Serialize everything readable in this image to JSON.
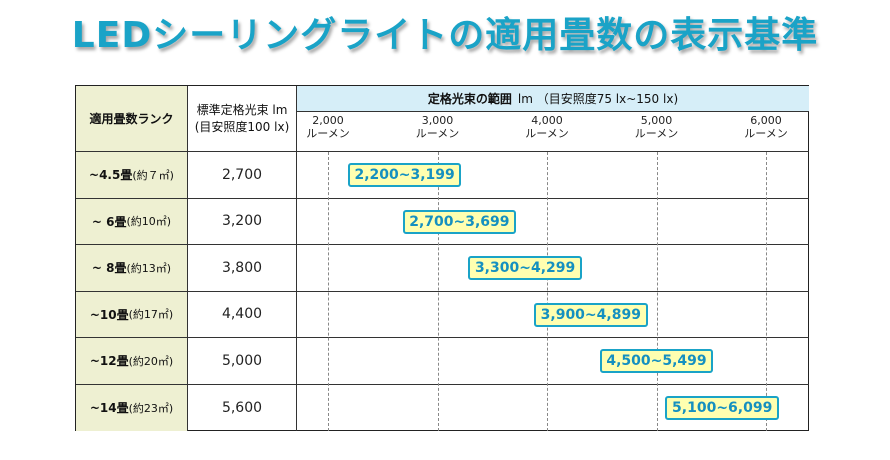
{
  "title": "LEDシーリングライトの適用畳数の表示基準",
  "colors": {
    "title": "#1aa3c7",
    "badge_fill": "#ffffb0",
    "badge_border": "#1aa3c7",
    "rank_bg": "#eef0d2",
    "range_header_bg": "#d6eef8"
  },
  "chart_data": {
    "type": "table",
    "header": {
      "rank": "適用畳数ランク",
      "std_line1": "標準定格光束 lm",
      "std_line2": "(目安照度100 lx)",
      "range_bold": "定格光束の範囲",
      "range_rest": "lm （目安照度75 lx~150 lx)"
    },
    "ticks": [
      {
        "value": 2000,
        "label1": "2,000",
        "label2": "ルーメン"
      },
      {
        "value": 3000,
        "label1": "3,000",
        "label2": "ルーメン"
      },
      {
        "value": 4000,
        "label1": "4,000",
        "label2": "ルーメン"
      },
      {
        "value": 5000,
        "label1": "5,000",
        "label2": "ルーメン"
      },
      {
        "value": 6000,
        "label1": "6,000",
        "label2": "ルーメン"
      }
    ],
    "rows": [
      {
        "rank_bold": "~4.5畳",
        "rank_area": "(約７㎡)",
        "standard": "2,700",
        "range_label": "2,200~3,199",
        "min": 2200,
        "max": 3199
      },
      {
        "rank_bold": "~ 6畳",
        "rank_area": "(約10㎡)",
        "standard": "3,200",
        "range_label": "2,700~3,699",
        "min": 2700,
        "max": 3699
      },
      {
        "rank_bold": "~ 8畳",
        "rank_area": "(約13㎡)",
        "standard": "3,800",
        "range_label": "3,300~4,299",
        "min": 3300,
        "max": 4299
      },
      {
        "rank_bold": "~10畳",
        "rank_area": "(約17㎡)",
        "standard": "4,400",
        "range_label": "3,900~4,899",
        "min": 3900,
        "max": 4899
      },
      {
        "rank_bold": "~12畳",
        "rank_area": "(約20㎡)",
        "standard": "5,000",
        "range_label": "4,500~5,499",
        "min": 4500,
        "max": 5499
      },
      {
        "rank_bold": "~14畳",
        "rank_area": "(約23㎡)",
        "standard": "5,600",
        "range_label": "5,100~6,099",
        "min": 5100,
        "max": 6099
      }
    ]
  }
}
